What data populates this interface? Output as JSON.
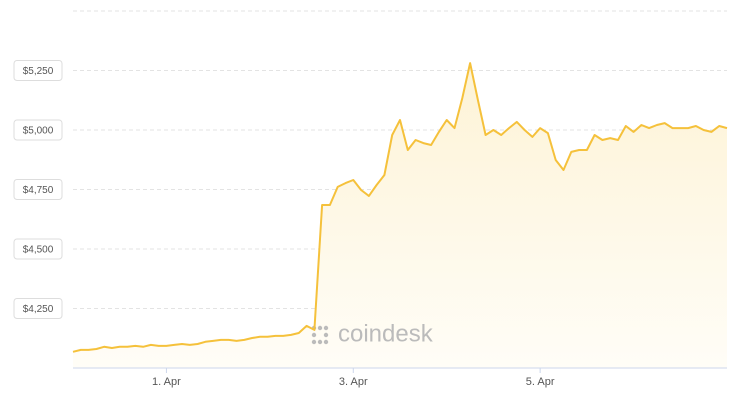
{
  "chart_data": {
    "type": "area",
    "watermark": "coindesk",
    "categories": [
      null,
      null,
      null,
      null,
      null,
      null,
      null,
      null,
      null,
      null,
      null,
      null,
      "1. Apr",
      null,
      null,
      null,
      null,
      null,
      null,
      null,
      null,
      null,
      null,
      null,
      null,
      null,
      null,
      null,
      null,
      null,
      null,
      null,
      null,
      null,
      null,
      null,
      "3. Apr",
      null,
      null,
      null,
      null,
      null,
      null,
      null,
      null,
      null,
      null,
      null,
      null,
      null,
      null,
      null,
      null,
      null,
      null,
      null,
      null,
      null,
      null,
      null,
      "5. Apr",
      null,
      null,
      null,
      null,
      null,
      null,
      null,
      null,
      null,
      null,
      null,
      null,
      null,
      null,
      null,
      null,
      null,
      null,
      null,
      null,
      null,
      null,
      null,
      null
    ],
    "series": [
      {
        "color": "#f5c13b",
        "values": [
          4068,
          4076,
          4076,
          4080,
          4089,
          4084,
          4089,
          4089,
          4093,
          4089,
          4097,
          4093,
          4093,
          4097,
          4101,
          4097,
          4101,
          4110,
          4114,
          4118,
          4118,
          4114,
          4118,
          4126,
          4131,
          4131,
          4135,
          4135,
          4139,
          4147,
          4177,
          4160,
          4685,
          4685,
          4761,
          4777,
          4790,
          4748,
          4723,
          4769,
          4811,
          4979,
          5042,
          4916,
          4958,
          4945,
          4937,
          4992,
          5042,
          5008,
          5134,
          5281,
          5126,
          4979,
          5000,
          4979,
          5008,
          5034,
          5000,
          4971,
          5008,
          4987,
          4874,
          4832,
          4908,
          4916,
          4916,
          4979,
          4958,
          4966,
          4958,
          5017,
          4992,
          5021,
          5008,
          5021,
          5029,
          5008,
          5008,
          5008,
          5017,
          5000,
          4992,
          5017,
          5008
        ]
      }
    ],
    "ylim": [
      4000,
      5500
    ],
    "yticks": [
      {
        "value": 4250,
        "label": "$4,250"
      },
      {
        "value": 4500,
        "label": "$4,500"
      },
      {
        "value": 4750,
        "label": "$4,750"
      },
      {
        "value": 5000,
        "label": "$5,000"
      },
      {
        "value": 5250,
        "label": "$5,250"
      }
    ],
    "grid": true
  }
}
